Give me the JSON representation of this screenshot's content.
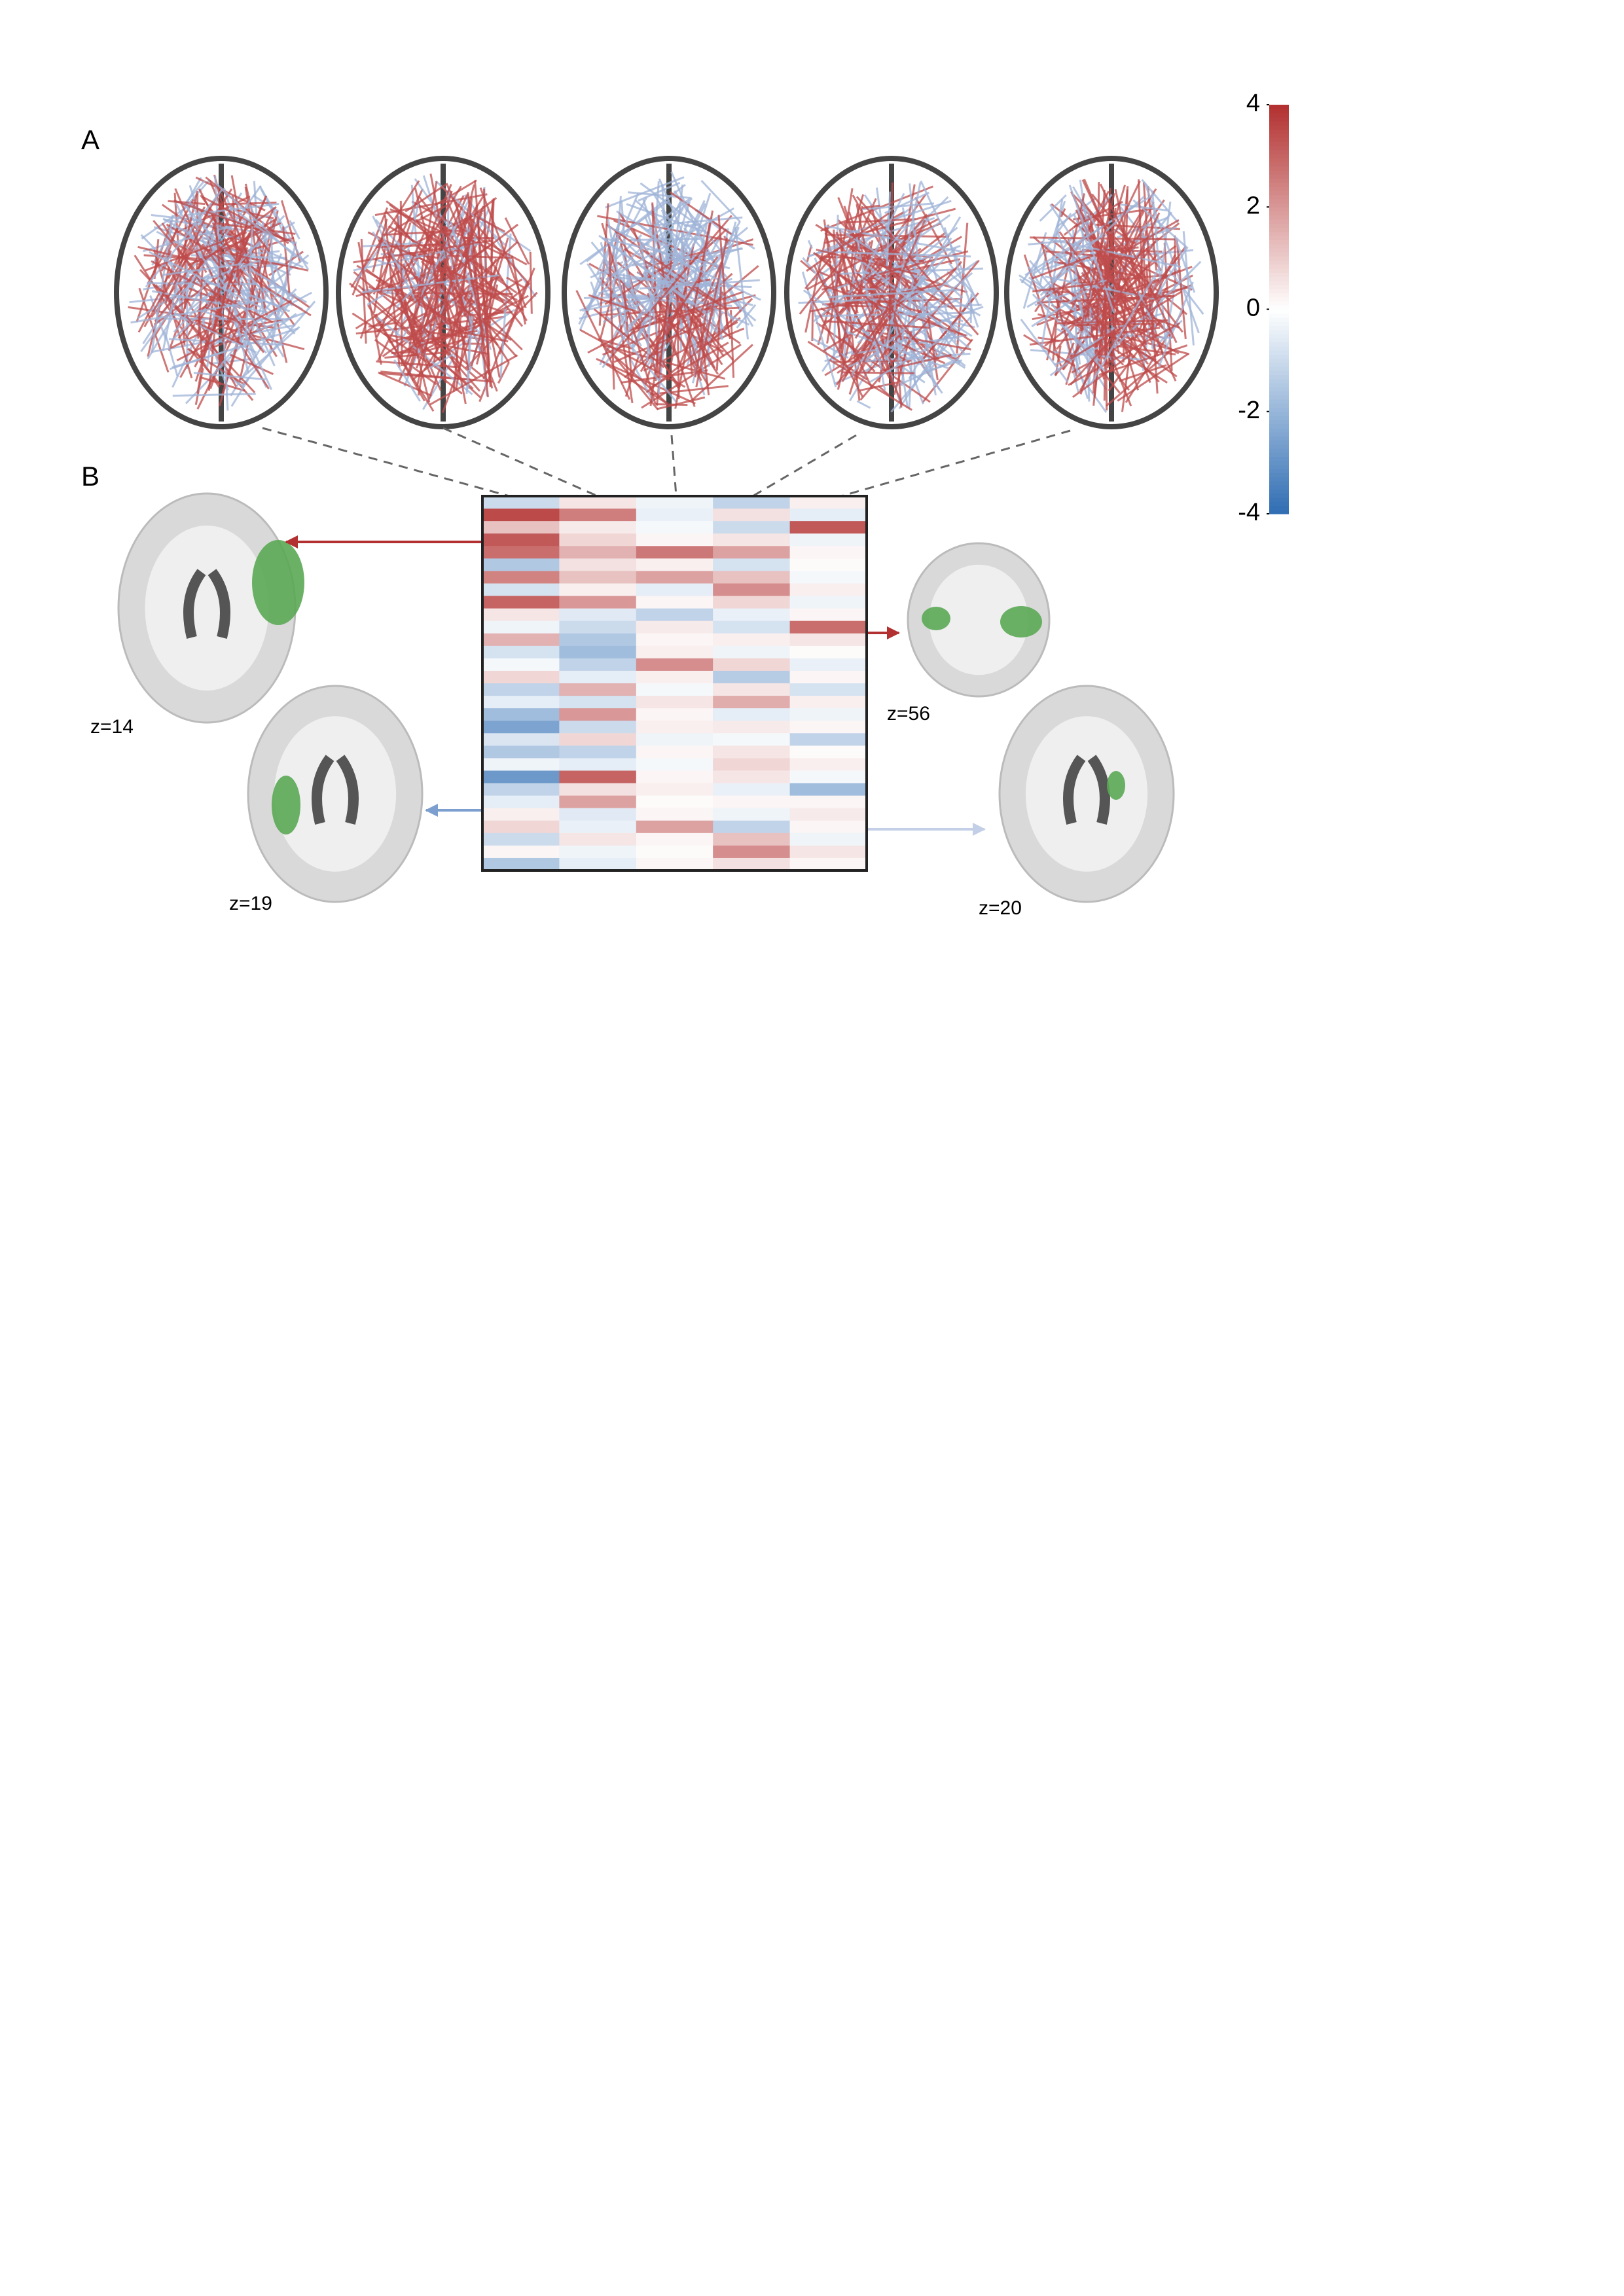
{
  "panel_a": {
    "label": "A"
  },
  "panel_b": {
    "label": "B",
    "slices": [
      {
        "label": "z=14"
      },
      {
        "label": "z=56"
      },
      {
        "label": "z=19"
      },
      {
        "label": "z=20"
      }
    ]
  },
  "colorbar": {
    "lim": [
      -4,
      4
    ],
    "ticks": [
      4,
      2,
      0,
      -2,
      -4
    ],
    "colors": [
      "#2f6db3",
      "#ffffff",
      "#b2302f"
    ]
  },
  "heatmap": {
    "values": [
      [
        -1,
        0.5,
        -0.3,
        -1.2,
        0.3
      ],
      [
        3.5,
        2.5,
        -0.4,
        0.6,
        -0.5
      ],
      [
        1.2,
        0.4,
        -0.2,
        -1,
        3.2
      ],
      [
        3.2,
        0.8,
        0.2,
        0.5,
        -0.3
      ],
      [
        2.8,
        1.5,
        2.6,
        1.8,
        0.2
      ],
      [
        -1.5,
        0.6,
        0.3,
        -0.8,
        0.1
      ],
      [
        2.4,
        1.2,
        1.8,
        1.2,
        -0.2
      ],
      [
        -0.8,
        0.3,
        -0.5,
        2.2,
        0.3
      ],
      [
        3,
        2,
        0.2,
        0.8,
        -0.3
      ],
      [
        0.5,
        -0.6,
        -1.2,
        -0.4,
        0.2
      ],
      [
        -0.3,
        -1,
        0.4,
        -0.8,
        2.8
      ],
      [
        1.5,
        -1.5,
        0.2,
        0.3,
        0.5
      ],
      [
        -0.8,
        -1.8,
        0.3,
        -0.3,
        0.1
      ],
      [
        -0.2,
        -1.2,
        2.2,
        0.8,
        -0.4
      ],
      [
        0.8,
        -0.5,
        0.3,
        -1.4,
        0.2
      ],
      [
        -1.2,
        1.5,
        -0.2,
        0.5,
        -0.8
      ],
      [
        -0.5,
        -0.8,
        0.5,
        1.6,
        0.3
      ],
      [
        -1.8,
        2,
        0.2,
        -0.5,
        -0.3
      ],
      [
        -2.5,
        -1,
        0.3,
        0.4,
        0.2
      ],
      [
        -0.7,
        0.8,
        -0.3,
        -0.2,
        -1.2
      ],
      [
        -1.5,
        -1.2,
        0.2,
        0.5,
        0.1
      ],
      [
        -0.3,
        -0.5,
        -0.2,
        0.8,
        0.3
      ],
      [
        -2.8,
        3,
        0.2,
        0.5,
        -0.2
      ],
      [
        -1.2,
        0.6,
        0.3,
        -0.4,
        -1.8
      ],
      [
        -0.5,
        1.8,
        0.1,
        0.2,
        0.2
      ],
      [
        0.3,
        -0.6,
        0.2,
        -0.3,
        0.4
      ],
      [
        0.8,
        -0.4,
        1.8,
        -1.2,
        0.2
      ],
      [
        -1,
        0.5,
        0.2,
        1.2,
        -0.3
      ],
      [
        0.2,
        -0.3,
        0.1,
        2.2,
        0.5
      ],
      [
        -1.5,
        -0.5,
        0.2,
        0.6,
        0.2
      ]
    ]
  }
}
